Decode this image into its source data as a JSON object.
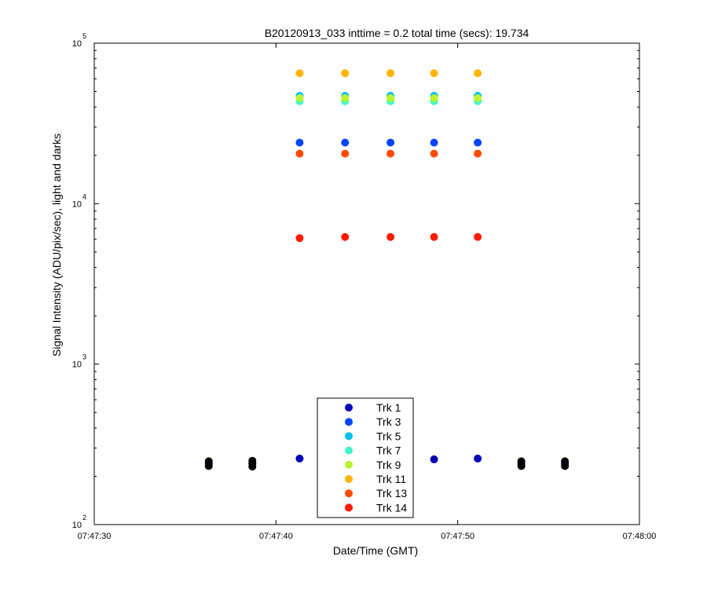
{
  "chart_data": {
    "type": "scatter",
    "title": "B20120913_033 inttime = 0.2 total time (secs): 19.734",
    "xlabel": "Date/Time (GMT)",
    "ylabel": "Signal Intensity (ADU/pix/sec), light and darks",
    "yscale": "log",
    "xlim": [
      "07:47:30",
      "07:48:00"
    ],
    "ylim": [
      100,
      100000
    ],
    "x_tick_labels": [
      "07:47:30",
      "07:47:40",
      "07:47:50",
      "07:48:00"
    ],
    "y_ticks": [
      {
        "base": "10",
        "exp": "2"
      },
      {
        "base": "10",
        "exp": "3"
      },
      {
        "base": "10",
        "exp": "4"
      },
      {
        "base": "10",
        "exp": "5"
      }
    ],
    "grid": false,
    "legend_position": "bottom-center",
    "series": [
      {
        "name": "Trk 1",
        "color": "#0000B4",
        "x": [
          "07:47:36.3",
          "07:47:38.7",
          "07:47:41.3",
          "07:47:48.7",
          "07:47:51.1",
          "07:47:53.5",
          "07:47:55.9"
        ],
        "y": [
          240,
          240,
          258,
          255,
          258,
          240,
          240
        ]
      },
      {
        "name": "Trk 3",
        "color": "#0044FF",
        "x": [
          "07:47:41.3",
          "07:47:43.8",
          "07:47:46.3",
          "07:47:48.7",
          "07:47:51.1"
        ],
        "y": [
          24000,
          24000,
          24000,
          24000,
          24000
        ]
      },
      {
        "name": "Trk 5",
        "color": "#00BFF2",
        "x": [
          "07:47:41.3",
          "07:47:43.8",
          "07:47:46.3",
          "07:47:48.7",
          "07:47:51.1"
        ],
        "y": [
          47000,
          47000,
          47000,
          47000,
          47000
        ]
      },
      {
        "name": "Trk 7",
        "color": "#40F5C8",
        "x": [
          "07:47:41.3",
          "07:47:43.8",
          "07:47:46.3",
          "07:47:48.7",
          "07:47:51.1"
        ],
        "y": [
          43500,
          43500,
          43500,
          43500,
          43500
        ]
      },
      {
        "name": "Trk 9",
        "color": "#B8F530",
        "x": [
          "07:47:41.3",
          "07:47:43.8",
          "07:47:46.3",
          "07:47:48.7",
          "07:47:51.1"
        ],
        "y": [
          45500,
          45500,
          45500,
          45500,
          45500
        ]
      },
      {
        "name": "Trk 11",
        "color": "#FFB400",
        "x": [
          "07:47:41.3",
          "07:47:43.8",
          "07:47:46.3",
          "07:47:48.7",
          "07:47:51.1"
        ],
        "y": [
          65000,
          65000,
          65000,
          65000,
          65000
        ]
      },
      {
        "name": "Trk 13",
        "color": "#FF4A00",
        "x": [
          "07:47:41.3",
          "07:47:43.8",
          "07:47:46.3",
          "07:47:48.7",
          "07:47:51.1"
        ],
        "y": [
          20500,
          20500,
          20500,
          20500,
          20500
        ]
      },
      {
        "name": "Trk 14",
        "color": "#FF1A00",
        "x": [
          "07:47:41.3",
          "07:47:43.8",
          "07:47:46.3",
          "07:47:48.7",
          "07:47:51.1"
        ],
        "y": [
          6100,
          6200,
          6200,
          6200,
          6200
        ]
      },
      {
        "name": "",
        "color": "#000000",
        "x": [
          "07:47:36.3",
          "07:47:36.3",
          "07:47:38.7",
          "07:47:38.7",
          "07:47:38.7",
          "07:47:53.5",
          "07:47:53.5",
          "07:47:55.9",
          "07:47:55.9"
        ],
        "y": [
          232,
          248,
          230,
          240,
          250,
          232,
          248,
          232,
          248
        ]
      }
    ]
  }
}
